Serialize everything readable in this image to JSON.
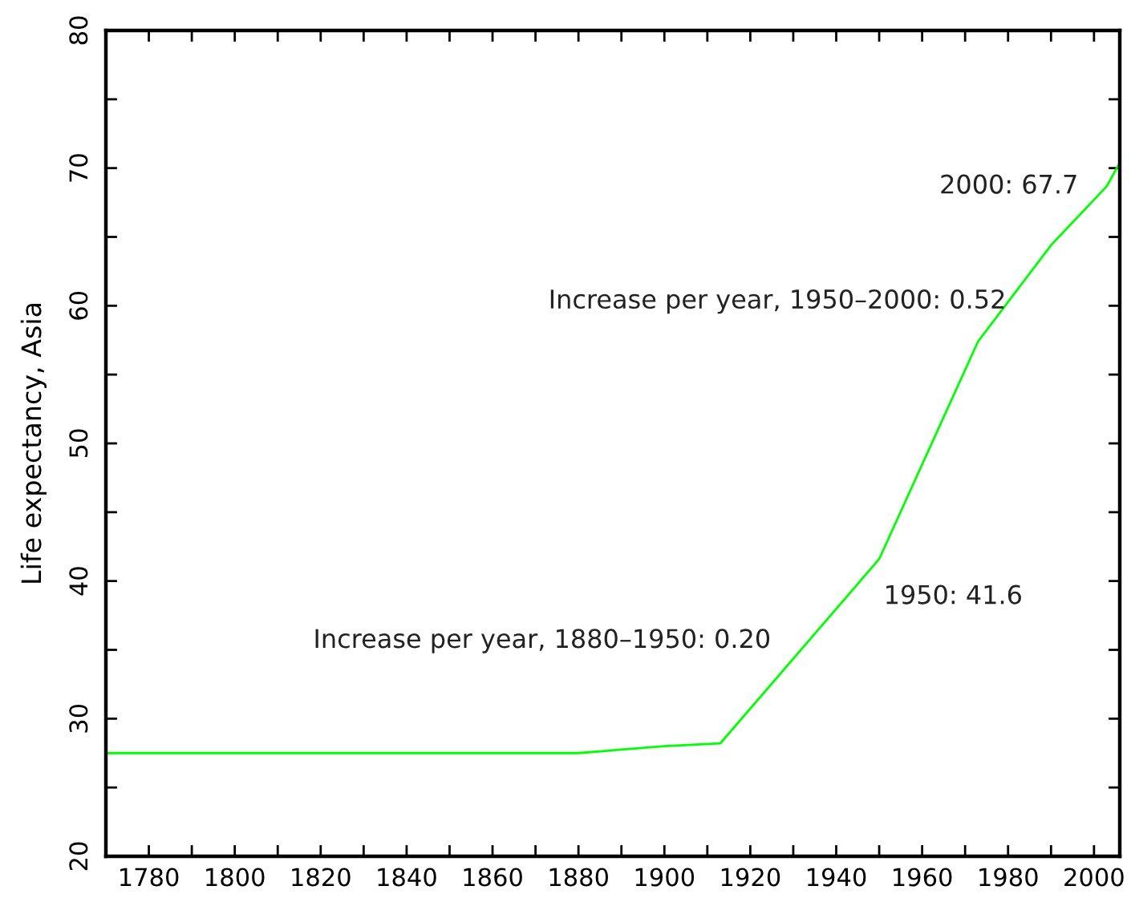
{
  "chart_data": {
    "type": "line",
    "ylabel": "Life expectancy, Asia",
    "x": [
      1770,
      1880,
      1900,
      1913,
      1950,
      1973,
      1990,
      2000,
      2003,
      2006
    ],
    "series": [
      {
        "color": "#00ff00",
        "values": [
          27.5,
          27.5,
          28.0,
          28.2,
          41.6,
          57.4,
          64.4,
          67.7,
          68.7,
          70.4
        ]
      }
    ],
    "xlim": [
      1770,
      2006
    ],
    "xticks": [
      1780,
      {
        "value": 1790,
        "label": null
      },
      1800,
      {
        "value": 1810,
        "label": null
      },
      1820,
      {
        "value": 1830,
        "label": null
      },
      1840,
      {
        "value": 1850,
        "label": null
      },
      1860,
      {
        "value": 1870,
        "label": null
      },
      1880,
      {
        "value": 1890,
        "label": null
      },
      1900,
      {
        "value": 1910,
        "label": null
      },
      1920,
      {
        "value": 1930,
        "label": null
      },
      1940,
      {
        "value": 1950,
        "label": null
      },
      1960,
      {
        "value": 1970,
        "label": null
      },
      1980,
      {
        "value": 1990,
        "label": null
      },
      2000
    ],
    "ylim": [
      20,
      80
    ],
    "yticks": [
      20,
      {
        "value": 25,
        "label": null
      },
      30,
      {
        "value": 35,
        "label": null
      },
      40,
      {
        "value": 45,
        "label": null
      },
      50,
      {
        "value": 55,
        "label": null
      },
      60,
      {
        "value": 65,
        "label": null
      },
      70,
      {
        "value": 75,
        "label": null
      },
      80
    ],
    "annotations": [
      {
        "text": "2000: 67.7",
        "x": 2000,
        "y": 67.7
      },
      "Increase per year, 1950–2000: 0.52",
      {
        "text": "1950: 41.6",
        "x": 1950,
        "y": 41.6
      },
      "Increase per year, 1880–1950: 0.20"
    ],
    "grid": false
  }
}
